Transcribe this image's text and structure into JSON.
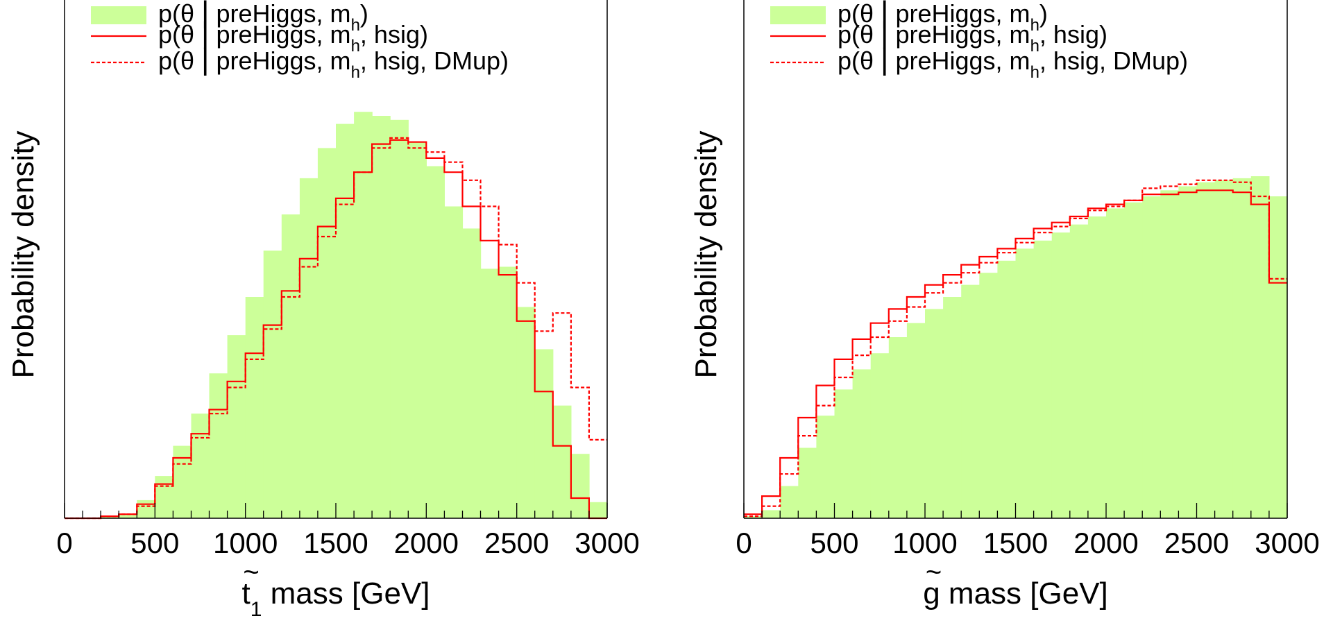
{
  "colors": {
    "prior_fill": "#ccff99",
    "posterior_line": "#ff0000",
    "axis": "#000000"
  },
  "legend": {
    "entries": [
      {
        "kind": "prior-fill",
        "label": "p(θ | preHiggs, m_h)",
        "text_pre": "p(θ ",
        "text_post": " preHiggs, m",
        "sub": "h",
        "tail": ")"
      },
      {
        "kind": "solid-line",
        "label": "p(θ | preHiggs, m_h, hsig)",
        "text_pre": "p(θ ",
        "text_post": " preHiggs, m",
        "sub": "h",
        "tail": ", hsig)"
      },
      {
        "kind": "dashed-line",
        "label": "p(θ | preHiggs, m_h, hsig, DMup)",
        "text_pre": "p(θ ",
        "text_post": " preHiggs, m",
        "sub": "h",
        "tail": ", hsig, DMup)"
      }
    ]
  },
  "chart_data": [
    {
      "type": "histogram",
      "ylabel": "Probability density",
      "xlabel": {
        "main": "t",
        "accent": "~",
        "sub": "1",
        "rest": " mass  [GeV]"
      },
      "xlim": [
        0,
        3000
      ],
      "ylim": [
        0,
        100
      ],
      "xticks": [
        0,
        500,
        1000,
        1500,
        2000,
        2500,
        3000
      ],
      "bin_width": 100,
      "series": [
        {
          "name": "p(θ | preHiggs, m_h)",
          "style": "filled",
          "values": [
            0,
            0,
            0.5,
            1,
            4.5,
            10.5,
            18,
            26,
            36,
            45.5,
            55,
            66.5,
            75.5,
            84.5,
            92,
            98,
            101,
            100,
            99,
            93.5,
            87.5,
            77.5,
            72,
            62,
            62.5,
            52.5,
            42,
            28,
            16,
            4,
            0
          ]
        },
        {
          "name": "p(θ | preHiggs, m_h, hsig)",
          "style": "solid",
          "values": [
            0,
            0,
            0.5,
            1,
            3.5,
            8.5,
            15,
            21,
            27,
            34,
            41,
            48,
            56.5,
            64.5,
            72.5,
            79.5,
            86,
            93,
            94,
            93.5,
            89.5,
            86,
            77.5,
            69,
            60.5,
            49,
            31.5,
            18,
            5,
            0,
            0
          ]
        },
        {
          "name": "p(θ | preHiggs, m_h, hsig, DMup)",
          "style": "dashed",
          "values": [
            0,
            0,
            0.5,
            1,
            3,
            8,
            13.5,
            20,
            26,
            32.5,
            39.5,
            47,
            55,
            62.5,
            70,
            78,
            86,
            92,
            94.5,
            92,
            91,
            88.5,
            84,
            77.5,
            68,
            58.5,
            46.5,
            51,
            32.5,
            19.5,
            5,
            0
          ]
        }
      ]
    },
    {
      "type": "histogram",
      "ylabel": "Probability density",
      "xlabel": {
        "main": "g",
        "accent": "~",
        "sub": "",
        "rest": " mass [GeV]"
      },
      "xlim": [
        0,
        3000
      ],
      "ylim": [
        0,
        100
      ],
      "xticks": [
        0,
        500,
        1000,
        1500,
        2000,
        2500,
        3000
      ],
      "bin_width": 100,
      "series": [
        {
          "name": "p(θ | preHiggs, m_h)",
          "style": "filled",
          "values": [
            0.5,
            2,
            8,
            17.5,
            25.5,
            32,
            37,
            41,
            45,
            48.5,
            52,
            55,
            58,
            61,
            64,
            67,
            69,
            71,
            73,
            75,
            77,
            78.5,
            80,
            81.5,
            82.5,
            83.5,
            84,
            84.5,
            85,
            80,
            57
          ]
        },
        {
          "name": "p(θ | preHiggs, m_h, hsig)",
          "style": "solid",
          "values": [
            1,
            5.5,
            15,
            25,
            33,
            39.5,
            44.5,
            48.5,
            52,
            55,
            58,
            60.5,
            63,
            65,
            67,
            69.5,
            72,
            73.5,
            75,
            77,
            78,
            79,
            80.5,
            80.5,
            81,
            81.5,
            81.5,
            81,
            78,
            58.5,
            57
          ]
        },
        {
          "name": "p(θ | preHiggs, m_h, hsig, DMup)",
          "style": "dashed",
          "values": [
            0.5,
            3,
            11,
            20.5,
            28,
            35,
            40.5,
            45,
            49,
            52.5,
            56,
            58.5,
            61,
            63.5,
            66,
            68.5,
            71,
            72.5,
            74.5,
            76.5,
            77.5,
            79,
            82,
            82.5,
            83,
            84,
            84,
            83.5,
            80,
            59.5,
            59
          ]
        }
      ]
    }
  ]
}
